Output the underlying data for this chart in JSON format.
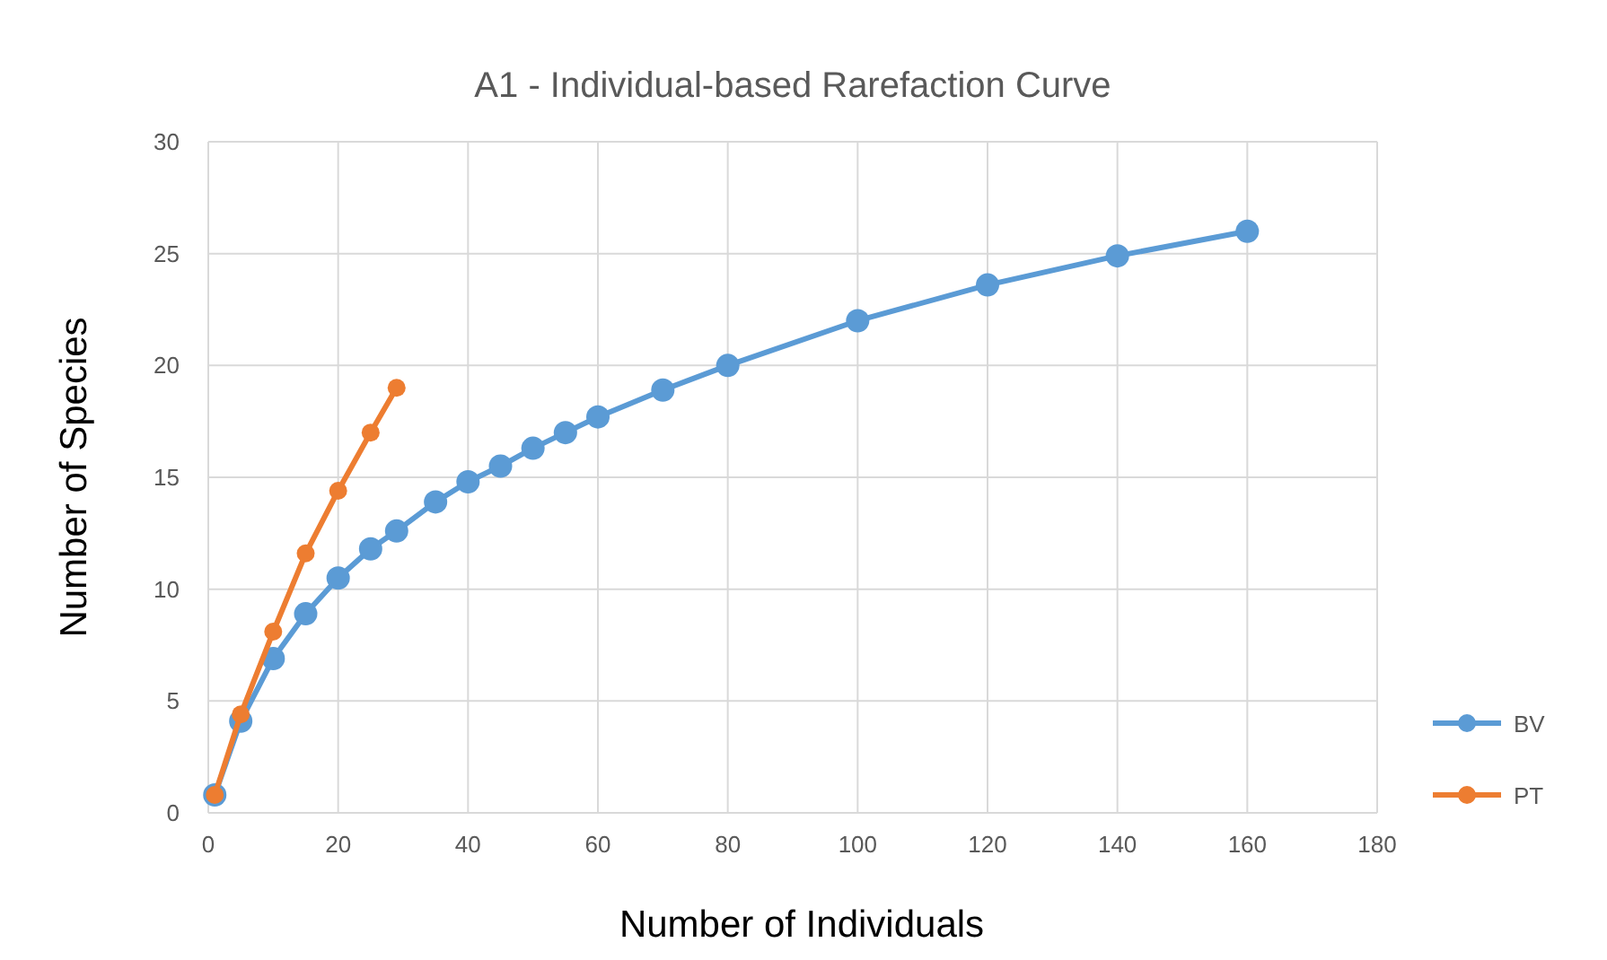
{
  "chart_data": {
    "type": "line",
    "title": "A1 - Individual-based Rarefaction Curve",
    "xlabel": "Number of Individuals",
    "ylabel": "Number of Species",
    "series": [
      {
        "name": "BV",
        "color": "#5b9bd5",
        "x": [
          1,
          5,
          10,
          15,
          20,
          25,
          29,
          35,
          40,
          45,
          50,
          55,
          60,
          70,
          80,
          100,
          120,
          140,
          160
        ],
        "values": [
          0.8,
          4.1,
          6.9,
          8.9,
          10.5,
          11.8,
          12.6,
          13.9,
          14.8,
          15.5,
          16.3,
          17.0,
          17.7,
          18.9,
          20.0,
          22.0,
          23.6,
          24.9,
          26.0
        ]
      },
      {
        "name": "PT",
        "color": "#ed7d31",
        "x": [
          1,
          5,
          10,
          15,
          20,
          25,
          29
        ],
        "values": [
          0.8,
          4.4,
          8.1,
          11.6,
          14.4,
          17.0,
          19.0
        ]
      }
    ],
    "xlim": [
      0,
      180
    ],
    "xticks": [
      0,
      20,
      40,
      60,
      80,
      100,
      120,
      140,
      160,
      180
    ],
    "ylim": [
      0,
      30
    ],
    "yticks": [
      0,
      5,
      10,
      15,
      20,
      25,
      30
    ],
    "grid": true,
    "legend": "right",
    "marker": "circle",
    "line_style": "solid"
  }
}
